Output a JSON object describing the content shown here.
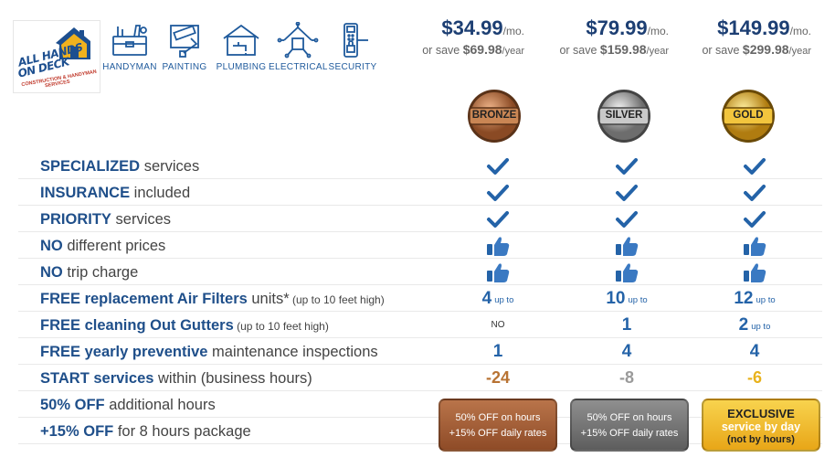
{
  "logo": {
    "line1": "ALL HANDS",
    "line2": "ON DECK",
    "sub1": "CONSTRUCTION & HANDYMAN",
    "sub2": "SERVICES"
  },
  "services": [
    {
      "label": "HANDYMAN",
      "icon": "toolbox-icon"
    },
    {
      "label": "PAINTING",
      "icon": "paint-roller-icon"
    },
    {
      "label": "PLUMBING",
      "icon": "faucet-icon"
    },
    {
      "label": "ELECTRICAL",
      "icon": "circuit-house-icon"
    },
    {
      "label": "SECURITY",
      "icon": "smart-lock-icon"
    }
  ],
  "plans": [
    {
      "price": "$34.99",
      "per": "/mo.",
      "save_prefix": "or save ",
      "save_amount": "$69.98",
      "save_suffix": "/year",
      "badge": "BRONZE"
    },
    {
      "price": "$79.99",
      "per": "/mo.",
      "save_prefix": "or save ",
      "save_amount": "$159.98",
      "save_suffix": "/year",
      "badge": "SILVER"
    },
    {
      "price": "$149.99",
      "per": "/mo.",
      "save_prefix": "or save ",
      "save_amount": "$299.98",
      "save_suffix": "/year",
      "badge": "GOLD"
    }
  ],
  "rows": [
    {
      "bold": "SPECIALIZED",
      "rest": " services",
      "small": ""
    },
    {
      "bold": "INSURANCE",
      "rest": " included",
      "small": ""
    },
    {
      "bold": "PRIORITY",
      "rest": " services",
      "small": ""
    },
    {
      "bold": "NO",
      "rest": " different prices",
      "small": ""
    },
    {
      "bold": "NO",
      "rest": " trip charge",
      "small": ""
    },
    {
      "bold": "FREE replacement Air Filters",
      "rest": " units*",
      "small": " (up to 10 feet high)"
    },
    {
      "bold": "FREE cleaning Out Gutters",
      "rest": "",
      "small": " (up to 10 feet high)"
    },
    {
      "bold": "FREE yearly preventive",
      "rest": " maintenance inspections",
      "small": ""
    },
    {
      "bold": "START services",
      "rest": " within (business hours)",
      "small": ""
    },
    {
      "bold": "50% OFF",
      "rest": " additional hours",
      "small": ""
    },
    {
      "bold": "+15% OFF",
      "rest": " for 8 hours package",
      "small": ""
    }
  ],
  "values": {
    "filters": [
      {
        "n": "4",
        "upto": "up to"
      },
      {
        "n": "10",
        "upto": "up to"
      },
      {
        "n": "12",
        "upto": "up to"
      }
    ],
    "gutters": [
      {
        "n": "NO",
        "upto": ""
      },
      {
        "n": "1",
        "upto": ""
      },
      {
        "n": "2",
        "upto": "up to"
      }
    ],
    "inspections": [
      "1",
      "4",
      "4"
    ],
    "start_hours": [
      "-24",
      "-8",
      "-6"
    ]
  },
  "boxes": {
    "bronze": {
      "line1": "50% OFF on hours",
      "line2": "+15% OFF daily rates"
    },
    "silver": {
      "line1": "50% OFF on hours",
      "line2": "+15% OFF daily rates"
    },
    "gold": {
      "line1": "EXCLUSIVE",
      "line2": "service by day",
      "line3": "(not by hours)"
    }
  },
  "colors": {
    "brand_blue": "#1f4f8a",
    "value_blue": "#2463a8",
    "bronze": "#b87333",
    "silver": "#9a9a9a",
    "gold": "#e8b21c"
  }
}
